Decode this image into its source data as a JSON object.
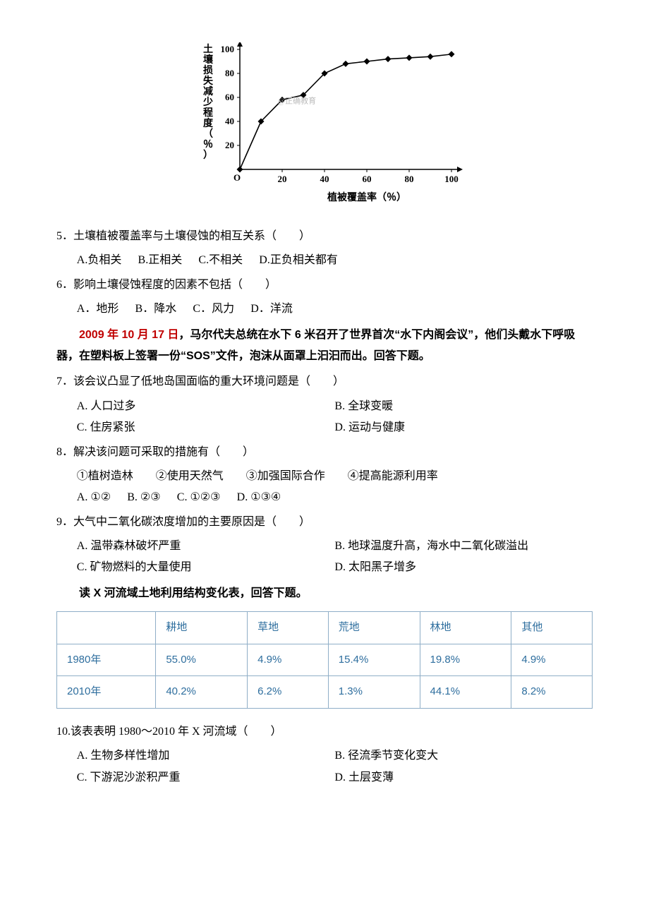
{
  "chart": {
    "type": "line-scatter",
    "ylabel": "土壤损失减少程度（％）",
    "xlabel": "植被覆盖率（％）",
    "label_fontsize": 14,
    "x_ticks": [
      0,
      20,
      40,
      60,
      80,
      100
    ],
    "y_ticks": [
      0,
      20,
      40,
      60,
      80,
      100
    ],
    "xlim": [
      0,
      100
    ],
    "ylim": [
      0,
      100
    ],
    "points_x": [
      0,
      10,
      20,
      30,
      40,
      50,
      60,
      70,
      80,
      90,
      100
    ],
    "points_y": [
      0,
      40,
      58,
      62,
      80,
      88,
      90,
      92,
      93,
      94,
      96
    ],
    "line_color": "#000000",
    "marker_color": "#000000",
    "marker": "diamond",
    "marker_size": 7,
    "line_width": 1.6,
    "axis_color": "#000000",
    "background_color": "#ffffff",
    "watermark": "@正确教育"
  },
  "q5": {
    "stem": "5．土壤植被覆盖率与土壤侵蚀的相互关系（　　）",
    "A": "A.负相关",
    "B": "B.正相关",
    "C": "C.不相关",
    "D": "D.正负相关都有"
  },
  "q6": {
    "stem": "6．影响土壤侵蚀程度的因素不包括（　　）",
    "A": "A．地形",
    "B": "B．降水",
    "C": "C．风力",
    "D": "D．洋流"
  },
  "passage1": {
    "date": "2009 年 10 月 17 日",
    "rest1": "，马尔代夫总统在水下 6 米召开了世界首次“水下内阁会议”，他们头戴水下呼吸器，在塑料板上签署一份“SOS”文件，泡沫从面罩上汩汩而出。回答下题。"
  },
  "q7": {
    "stem": "7．该会议凸显了低地岛国面临的重大环境问题是（　　）",
    "A": "A. 人口过多",
    "B": "B. 全球变暖",
    "C": "C. 住房紧张",
    "D": "D. 运动与健康"
  },
  "q8": {
    "stem": "8．解决该问题可采取的措施有（　　）",
    "items": "①植树造林　　②使用天然气　　③加强国际合作　　④提高能源利用率",
    "A": "A. ①②",
    "B": "B. ②③",
    "C": "C. ①②③",
    "D": "D. ①③④"
  },
  "q9": {
    "stem": "9．大气中二氧化碳浓度增加的主要原因是（　　）",
    "A": "A. 温带森林破坏严重",
    "B": "B. 地球温度升高，海水中二氧化碳溢出",
    "C": "C. 矿物燃料的大量使用",
    "D": "D. 太阳黑子增多"
  },
  "passage2": "读 X 河流域土地利用结构变化表，回答下题。",
  "table": {
    "columns": [
      "",
      "耕地",
      "草地",
      "荒地",
      "林地",
      "其他"
    ],
    "rows": [
      [
        "1980年",
        "55.0%",
        "4.9%",
        "15.4%",
        "19.8%",
        "4.9%"
      ],
      [
        "2010年",
        "40.2%",
        "6.2%",
        "1.3%",
        "44.1%",
        "8.2%"
      ]
    ],
    "border_color": "#8faec7",
    "text_color": "#2e6e9e",
    "fontsize": 15
  },
  "q10": {
    "stem": "10.该表表明 1980～2010 年 X 河流域（　　）",
    "A": "A. 生物多样性增加",
    "B": "B. 径流季节变化变大",
    "C": "C. 下游泥沙淤积严重",
    "D": "D. 土层变薄"
  }
}
